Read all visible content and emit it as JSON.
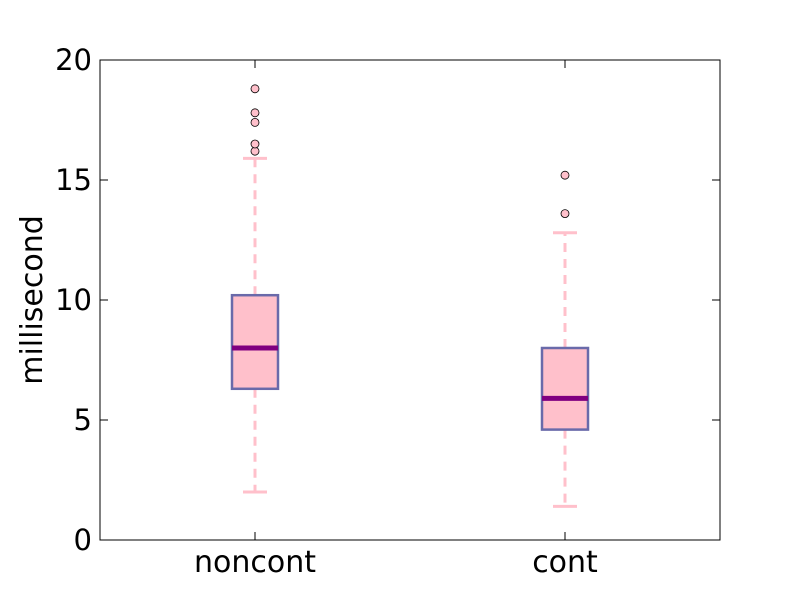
{
  "chart_data": {
    "type": "box",
    "title": "",
    "xlabel": "",
    "ylabel": "millisecond",
    "ylim": [
      0,
      20
    ],
    "y_ticks": [
      0,
      5,
      10,
      15,
      20
    ],
    "y_tick_labels": [
      "0",
      "5",
      "10",
      "15",
      "20"
    ],
    "grid": false,
    "categories": [
      "noncont",
      "cont"
    ],
    "boxes": [
      {
        "category": "noncont",
        "whisker_low": 2.0,
        "q1": 6.3,
        "median": 8.0,
        "q3": 10.2,
        "whisker_high": 15.9,
        "outliers": [
          16.2,
          16.5,
          17.4,
          17.8,
          18.8
        ]
      },
      {
        "category": "cont",
        "whisker_low": 1.4,
        "q1": 4.6,
        "median": 5.9,
        "q3": 8.0,
        "whisker_high": 12.8,
        "outliers": [
          13.6,
          15.2
        ]
      }
    ],
    "colors": {
      "box_fill": "#ffc0cb",
      "box_edge": "#6a6aaa",
      "median": "#800080",
      "whisker": "#ffc0cb",
      "cap": "#ffc0cb",
      "outlier_fill": "#ffc0cb",
      "outlier_edge": "#000000",
      "axes": "#000000"
    }
  }
}
